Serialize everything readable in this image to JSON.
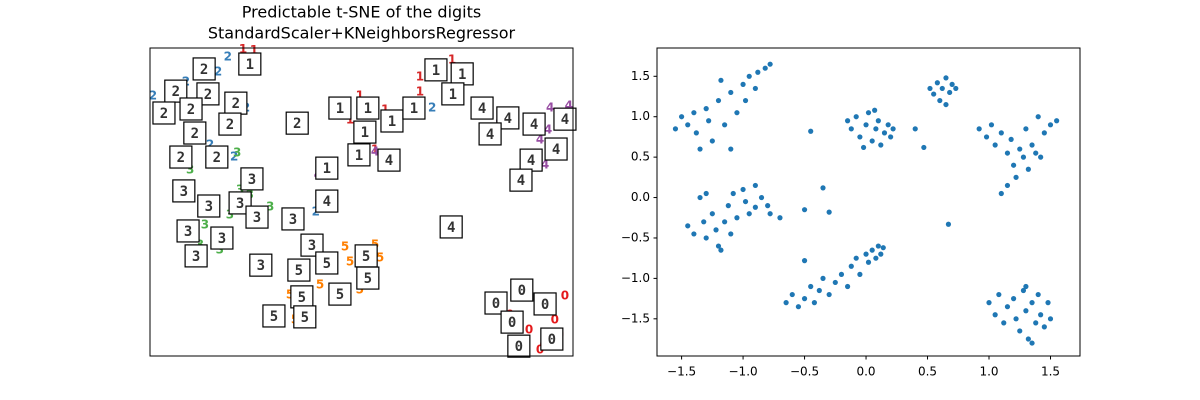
{
  "chart_data": [
    {
      "type": "text-scatter",
      "title": "Predictable t-SNE of the digits",
      "subtitle": "StandardScaler+KNeighborsRegressor",
      "xlim": [
        0,
        100
      ],
      "ylim": [
        0,
        100
      ],
      "series": [
        {
          "name": "0",
          "color": "#e41a1c",
          "x": [
            92.2,
            95.7,
            98.1,
            89.6,
            93.1,
            96.9,
            85.1,
            92.2
          ],
          "values": [
            18.2,
            11.7,
            19.5,
            8.4,
            3.6,
            6.8,
            13.3,
            1.9
          ]
        },
        {
          "name": "1",
          "color": "#d62728",
          "x": [
            24.6,
            63.8,
            63.8,
            47.3,
            55.6,
            49.6,
            71.4,
            22.0,
            53.2
          ],
          "values": [
            99.2,
            90.6,
            85.7,
            76.6,
            79.9,
            84.4,
            96.1,
            99.5,
            66.9
          ]
        },
        {
          "name": "2",
          "color": "#377eb8",
          "x": [
            18.4,
            16.1,
            0.7,
            2.4,
            11.8,
            19.9,
            22.7,
            8.5,
            14.2,
            4.7,
            39.2,
            66.7
          ],
          "values": [
            97.1,
            92.2,
            84.4,
            76.6,
            70.1,
            64.6,
            80.5,
            89.0,
            68.5,
            83.1,
            46.8,
            80.5
          ]
        },
        {
          "name": "3",
          "color": "#4daf4a",
          "x": [
            20.6,
            9.5,
            23.6,
            18.9,
            7.1,
            13.0,
            16.5,
            28.4,
            21.3,
            11.8
          ],
          "values": [
            65.9,
            60.4,
            52.3,
            45.8,
            40.9,
            42.5,
            34.4,
            48.4,
            53.9,
            36.0
          ]
        },
        {
          "name": "4",
          "color": "#984ea3",
          "x": [
            94.6,
            99.0,
            93.4,
            92.2,
            39.7,
            53.2,
            94.1,
            82.7
          ],
          "values": [
            80.5,
            81.2,
            62.0,
            70.1,
            58.8,
            66.2,
            73.4,
            76.6
          ]
        },
        {
          "name": "5",
          "color": "#ff7f00",
          "x": [
            46.1,
            53.2,
            42.6,
            47.3,
            33.1,
            37.8,
            40.2,
            54.4,
            34.3,
            49.6
          ],
          "values": [
            35.4,
            36.0,
            27.9,
            30.5,
            19.8,
            18.2,
            23.1,
            31.8,
            11.7,
            21.4
          ]
        }
      ],
      "images": [
        {
          "x": 23.6,
          "y": 94.8,
          "label": "1"
        },
        {
          "x": 12.8,
          "y": 93.2,
          "label": "2"
        },
        {
          "x": 6.1,
          "y": 86.0,
          "label": "2"
        },
        {
          "x": 13.7,
          "y": 85.1,
          "label": "2"
        },
        {
          "x": 3.3,
          "y": 78.9,
          "label": "2"
        },
        {
          "x": 9.7,
          "y": 80.2,
          "label": "2"
        },
        {
          "x": 20.3,
          "y": 82.1,
          "label": "2"
        },
        {
          "x": 18.9,
          "y": 75.3,
          "label": "2"
        },
        {
          "x": 10.6,
          "y": 72.4,
          "label": "2"
        },
        {
          "x": 7.3,
          "y": 64.6,
          "label": "2"
        },
        {
          "x": 15.8,
          "y": 64.6,
          "label": "2"
        },
        {
          "x": 34.8,
          "y": 75.6,
          "label": "2"
        },
        {
          "x": 44.9,
          "y": 80.5,
          "label": "1"
        },
        {
          "x": 51.5,
          "y": 80.5,
          "label": "1"
        },
        {
          "x": 57.2,
          "y": 76.3,
          "label": "1"
        },
        {
          "x": 62.4,
          "y": 80.5,
          "label": "1"
        },
        {
          "x": 50.8,
          "y": 72.7,
          "label": "1"
        },
        {
          "x": 49.4,
          "y": 65.3,
          "label": "1"
        },
        {
          "x": 56.5,
          "y": 63.6,
          "label": "4"
        },
        {
          "x": 41.8,
          "y": 61.0,
          "label": "1"
        },
        {
          "x": 67.6,
          "y": 92.9,
          "label": "1"
        },
        {
          "x": 73.8,
          "y": 91.6,
          "label": "1"
        },
        {
          "x": 71.6,
          "y": 85.1,
          "label": "1"
        },
        {
          "x": 78.5,
          "y": 80.5,
          "label": "4"
        },
        {
          "x": 84.6,
          "y": 77.3,
          "label": "4"
        },
        {
          "x": 90.8,
          "y": 75.3,
          "label": "4"
        },
        {
          "x": 98.1,
          "y": 76.9,
          "label": "4"
        },
        {
          "x": 80.4,
          "y": 72.1,
          "label": "4"
        },
        {
          "x": 96.0,
          "y": 67.2,
          "label": "4"
        },
        {
          "x": 90.1,
          "y": 63.6,
          "label": "4"
        },
        {
          "x": 87.7,
          "y": 57.1,
          "label": "4"
        },
        {
          "x": 71.2,
          "y": 41.9,
          "label": "4"
        },
        {
          "x": 41.8,
          "y": 50.3,
          "label": "4"
        },
        {
          "x": 24.1,
          "y": 57.5,
          "label": "3"
        },
        {
          "x": 8.0,
          "y": 53.6,
          "label": "3"
        },
        {
          "x": 13.9,
          "y": 48.7,
          "label": "3"
        },
        {
          "x": 21.3,
          "y": 49.7,
          "label": "3"
        },
        {
          "x": 25.3,
          "y": 45.1,
          "label": "3"
        },
        {
          "x": 33.8,
          "y": 44.5,
          "label": "3"
        },
        {
          "x": 9.0,
          "y": 40.6,
          "label": "3"
        },
        {
          "x": 17.0,
          "y": 38.3,
          "label": "3"
        },
        {
          "x": 10.9,
          "y": 32.5,
          "label": "3"
        },
        {
          "x": 38.3,
          "y": 36.0,
          "label": "3"
        },
        {
          "x": 26.2,
          "y": 29.5,
          "label": "3"
        },
        {
          "x": 35.2,
          "y": 27.9,
          "label": "5"
        },
        {
          "x": 41.8,
          "y": 30.2,
          "label": "5"
        },
        {
          "x": 51.1,
          "y": 32.5,
          "label": "5"
        },
        {
          "x": 51.5,
          "y": 25.3,
          "label": "5"
        },
        {
          "x": 35.9,
          "y": 19.2,
          "label": "5"
        },
        {
          "x": 44.9,
          "y": 20.1,
          "label": "5"
        },
        {
          "x": 29.3,
          "y": 13.0,
          "label": "5"
        },
        {
          "x": 36.6,
          "y": 12.7,
          "label": "5"
        },
        {
          "x": 87.9,
          "y": 21.4,
          "label": "0"
        },
        {
          "x": 81.8,
          "y": 17.2,
          "label": "0"
        },
        {
          "x": 93.4,
          "y": 16.9,
          "label": "0"
        },
        {
          "x": 85.6,
          "y": 11.0,
          "label": "0"
        },
        {
          "x": 95.0,
          "y": 5.5,
          "label": "0"
        },
        {
          "x": 87.2,
          "y": 3.2,
          "label": "0"
        }
      ]
    },
    {
      "type": "scatter",
      "color": "#1f77b4",
      "xlim": [
        -1.7,
        1.74
      ],
      "ylim": [
        -1.96,
        1.85
      ],
      "xticks": [
        {
          "value": -1.5,
          "label": "−1.5"
        },
        {
          "value": -1,
          "label": "−1.0"
        },
        {
          "value": -0.5,
          "label": "−0.5"
        },
        {
          "value": 0,
          "label": "0.0"
        },
        0.5,
        {
          "value": 1,
          "label": "1.0"
        },
        1.5
      ],
      "yticks": [
        {
          "value": -1.5,
          "label": "−1.5"
        },
        {
          "value": -1,
          "label": "−1.0"
        },
        {
          "value": -0.5,
          "label": "−0.5"
        },
        {
          "value": 0,
          "label": "0.0"
        },
        0.5,
        {
          "value": 1,
          "label": "1.0"
        },
        1.5
      ],
      "x": [
        -1.55,
        -1.5,
        -1.45,
        -1.4,
        -1.38,
        -1.3,
        -1.28,
        -1.25,
        -1.2,
        -1.15,
        -1.1,
        -1.1,
        -1.05,
        -1.0,
        -0.98,
        -0.95,
        -0.9,
        -0.88,
        -0.82,
        -0.78,
        -1.35,
        -1.18,
        -0.15,
        -0.12,
        -0.08,
        -0.05,
        0.0,
        0.02,
        0.05,
        0.08,
        0.1,
        0.12,
        0.15,
        0.18,
        0.2,
        0.22,
        -0.02,
        0.07,
        0.52,
        0.55,
        0.58,
        0.6,
        0.62,
        0.65,
        0.68,
        0.7,
        0.73,
        0.65,
        0.92,
        0.98,
        1.02,
        1.05,
        1.1,
        1.15,
        1.18,
        1.2,
        1.22,
        1.25,
        1.28,
        1.3,
        1.32,
        1.35,
        1.38,
        1.42,
        1.45,
        1.5,
        1.55,
        1.1,
        1.15,
        1.4,
        -1.45,
        -1.4,
        -1.35,
        -1.32,
        -1.3,
        -1.25,
        -1.22,
        -1.2,
        -1.15,
        -1.12,
        -1.1,
        -1.08,
        -1.05,
        -1.0,
        -0.98,
        -0.95,
        -0.9,
        -0.85,
        -0.8,
        -0.78,
        -1.18,
        -1.3,
        -0.65,
        -0.6,
        -0.55,
        -0.5,
        -0.45,
        -0.42,
        -0.38,
        -0.35,
        -0.3,
        -0.25,
        -0.2,
        -0.15,
        -0.12,
        -0.08,
        -0.05,
        0.0,
        0.02,
        0.05,
        0.08,
        0.1,
        0.12,
        0.14,
        1.0,
        1.05,
        1.08,
        1.12,
        1.15,
        1.2,
        1.22,
        1.25,
        1.28,
        1.3,
        1.32,
        1.35,
        1.38,
        1.4,
        1.42,
        1.45,
        1.48,
        1.5,
        1.3,
        1.35,
        -0.45,
        -0.5,
        -0.3,
        -0.35,
        -0.5,
        0.67,
        -0.9,
        0.4,
        0.47,
        -0.7
      ],
      "values": [
        0.85,
        1.0,
        0.9,
        1.05,
        0.8,
        1.1,
        0.95,
        0.7,
        1.2,
        0.9,
        1.3,
        0.6,
        1.05,
        1.4,
        1.2,
        1.5,
        1.35,
        1.55,
        1.6,
        1.65,
        0.6,
        1.45,
        0.95,
        0.85,
        1.0,
        0.75,
        0.9,
        1.05,
        0.7,
        0.85,
        0.95,
        0.65,
        0.8,
        0.9,
        0.75,
        0.85,
        0.62,
        1.08,
        1.35,
        1.28,
        1.42,
        1.2,
        1.35,
        1.48,
        1.3,
        1.4,
        1.35,
        1.15,
        0.85,
        0.75,
        0.9,
        0.65,
        0.8,
        0.55,
        0.72,
        0.4,
        0.25,
        0.6,
        0.5,
        0.85,
        0.35,
        0.65,
        0.55,
        0.5,
        0.8,
        0.9,
        0.95,
        0.05,
        0.15,
        1.0,
        -0.35,
        -0.45,
        0.0,
        -0.3,
        -0.5,
        -0.2,
        -0.4,
        -0.6,
        -0.3,
        -0.1,
        -0.45,
        0.05,
        -0.25,
        0.1,
        -0.05,
        -0.2,
        0.15,
        0.0,
        -0.1,
        -0.2,
        -0.65,
        0.05,
        -1.3,
        -1.2,
        -1.35,
        -1.25,
        -1.1,
        -1.3,
        -1.15,
        -1.0,
        -1.2,
        -1.05,
        -0.95,
        -1.1,
        -0.85,
        -0.75,
        -0.95,
        -0.7,
        -0.8,
        -0.65,
        -0.75,
        -0.6,
        -0.7,
        -0.62,
        -1.3,
        -1.45,
        -1.2,
        -1.55,
        -1.35,
        -1.25,
        -1.5,
        -1.65,
        -1.15,
        -1.4,
        -1.75,
        -1.3,
        -1.55,
        -1.2,
        -1.45,
        -1.6,
        -1.3,
        -1.5,
        -1.1,
        -1.8,
        0.82,
        -0.15,
        -0.18,
        0.12,
        -0.78,
        -0.33,
        -0.12,
        0.85,
        0.62,
        -0.25
      ]
    }
  ]
}
